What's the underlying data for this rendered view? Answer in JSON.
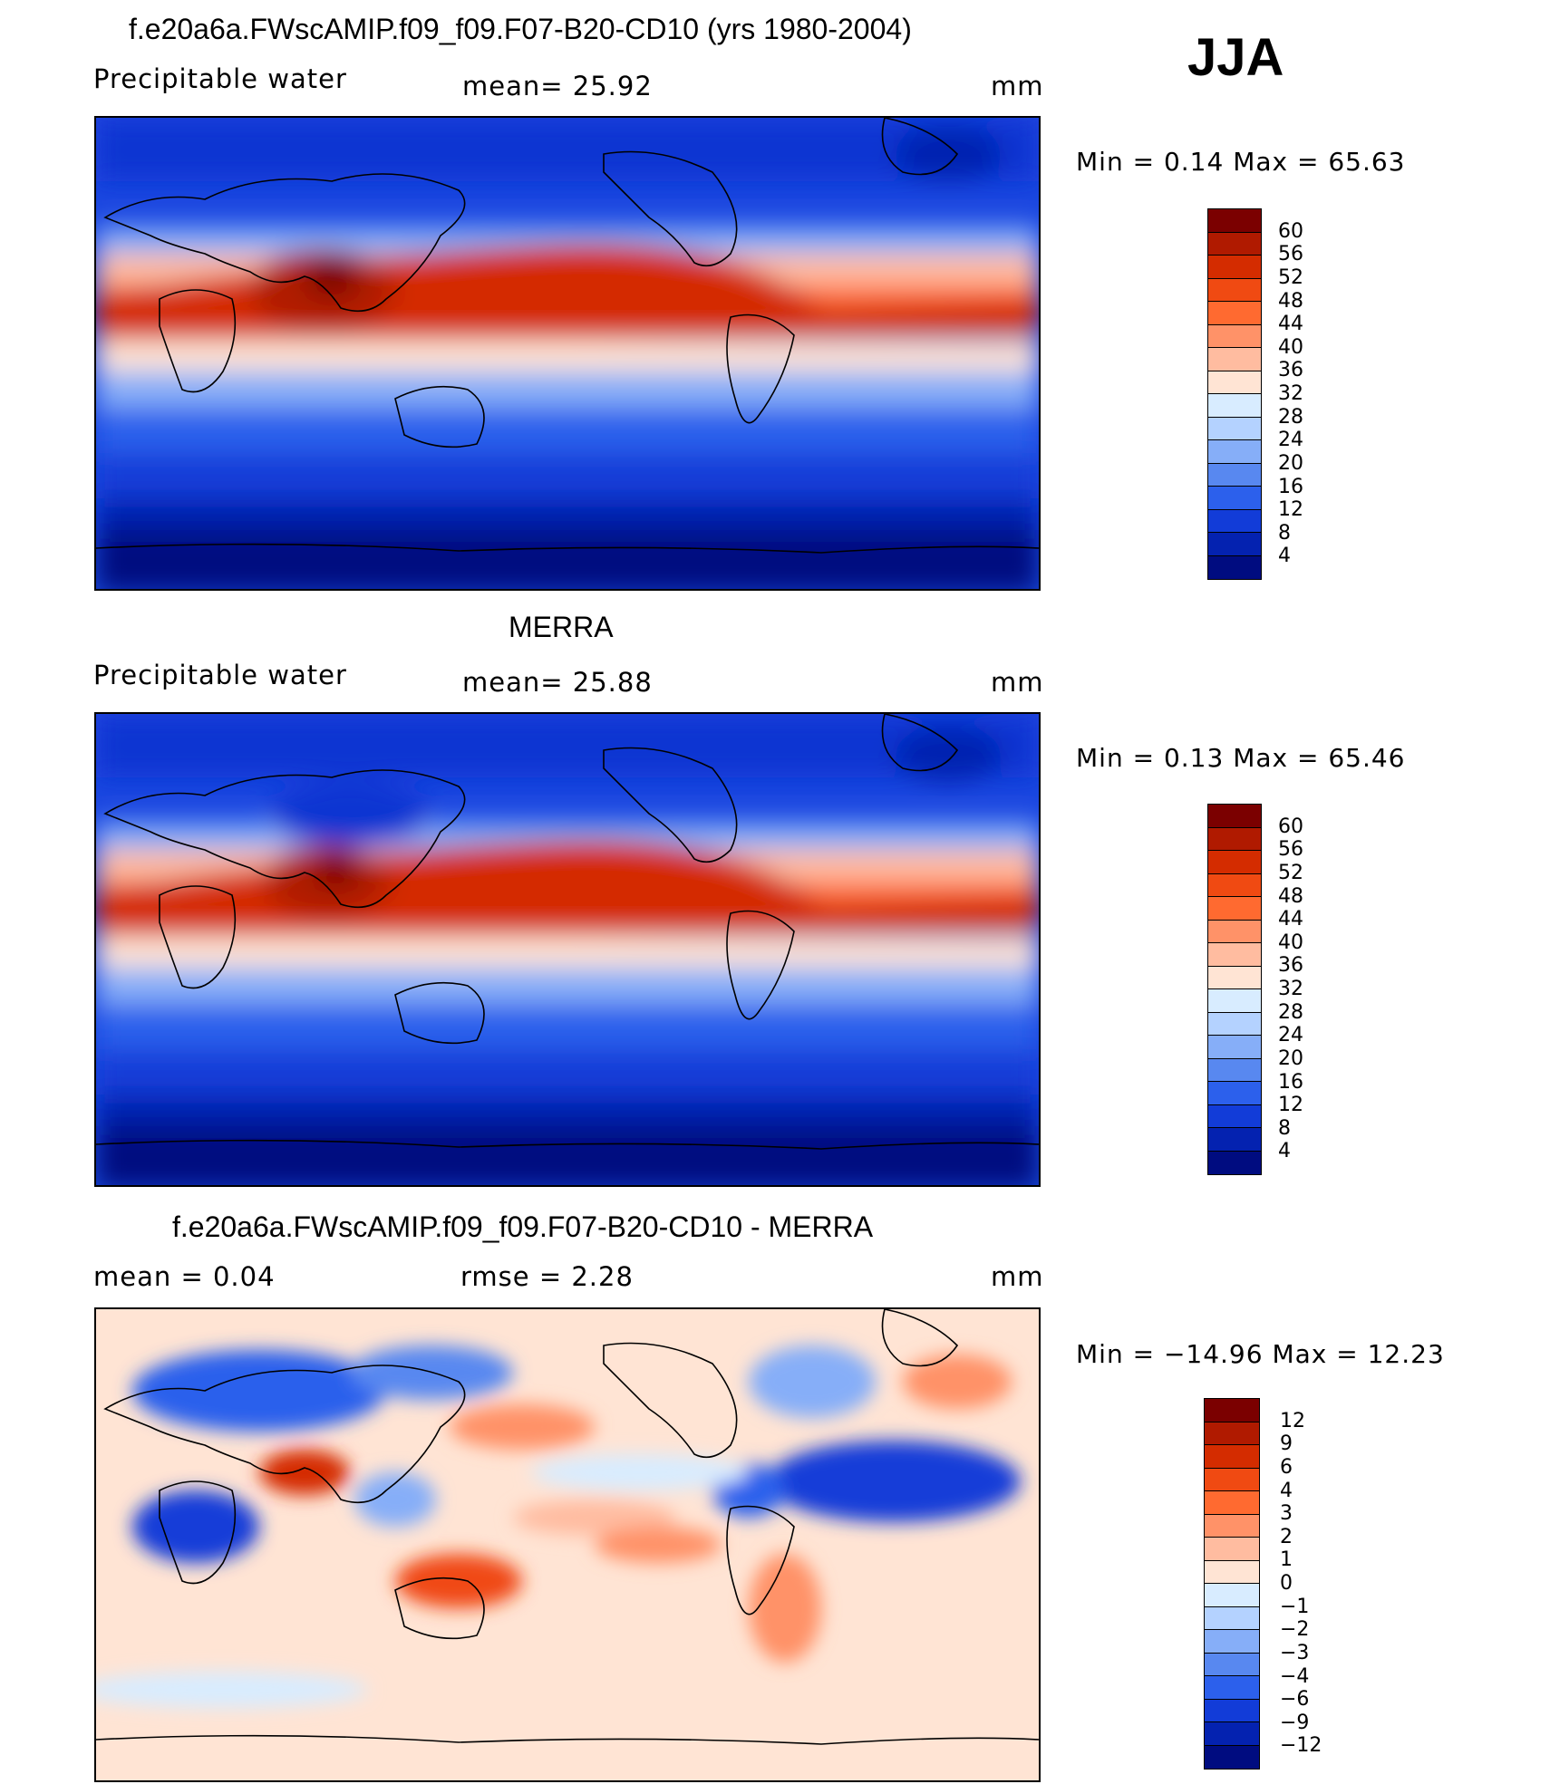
{
  "season": "JJA",
  "panels": [
    {
      "id": "model",
      "title": "f.e20a6a.FWscAMIP.f09_f09.F07-B20-CD10 (yrs 1980-2004)",
      "left_label": "Precipitable  water",
      "center_label": "mean=   25.92",
      "units": "mm",
      "minmax": "Min  =     0.14  Max  =    65.63",
      "colorbar_levels": [
        "60",
        "56",
        "52",
        "48",
        "44",
        "40",
        "36",
        "32",
        "28",
        "24",
        "20",
        "16",
        "12",
        "8",
        "4"
      ],
      "colorbar_colors": [
        "#7b0000",
        "#b01a00",
        "#d42c00",
        "#f04a12",
        "#ff6a30",
        "#ff9268",
        "#ffbca0",
        "#ffe4d4",
        "#d8ecff",
        "#b4d2ff",
        "#86aef8",
        "#5888f0",
        "#2c60ec",
        "#123cd8",
        "#0422b0",
        "#000c80"
      ]
    },
    {
      "id": "obs",
      "title": "MERRA",
      "left_label": "Precipitable  water",
      "center_label": "mean=   25.88",
      "units": "mm",
      "minmax": "Min  =     0.13  Max  =    65.46",
      "colorbar_levels": [
        "60",
        "56",
        "52",
        "48",
        "44",
        "40",
        "36",
        "32",
        "28",
        "24",
        "20",
        "16",
        "12",
        "8",
        "4"
      ],
      "colorbar_colors": [
        "#7b0000",
        "#b01a00",
        "#d42c00",
        "#f04a12",
        "#ff6a30",
        "#ff9268",
        "#ffbca0",
        "#ffe4d4",
        "#d8ecff",
        "#b4d2ff",
        "#86aef8",
        "#5888f0",
        "#2c60ec",
        "#123cd8",
        "#0422b0",
        "#000c80"
      ]
    },
    {
      "id": "diff",
      "title": "f.e20a6a.FWscAMIP.f09_f09.F07-B20-CD10 - MERRA",
      "left_label": "mean  =     0.04",
      "center_label": "rmse  =     2.28",
      "units": "mm",
      "minmax": "Min  = −14.96  Max  =    12.23",
      "colorbar_levels": [
        "12",
        "9",
        "6",
        "4",
        "3",
        "2",
        "1",
        "0",
        "−1",
        "−2",
        "−3",
        "−4",
        "−6",
        "−9",
        "−12"
      ],
      "colorbar_colors": [
        "#7b0000",
        "#b01a00",
        "#d42c00",
        "#f04a12",
        "#ff6a30",
        "#ff9268",
        "#ffbca0",
        "#ffe4d4",
        "#d8ecff",
        "#b4d2ff",
        "#86aef8",
        "#5888f0",
        "#2c60ec",
        "#123cd8",
        "#0422b0",
        "#000c80"
      ]
    }
  ]
}
